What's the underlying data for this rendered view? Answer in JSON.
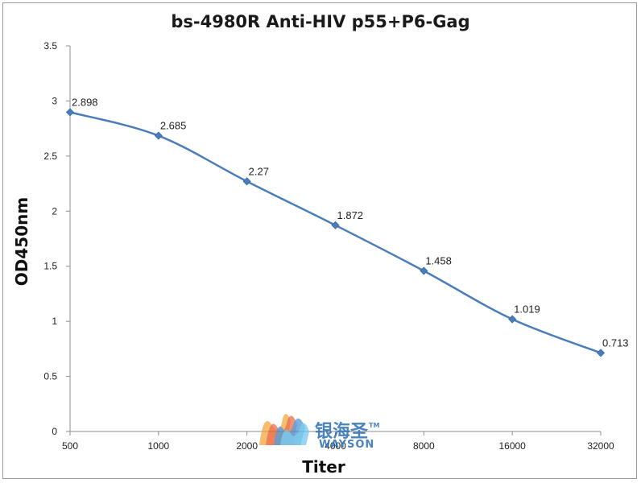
{
  "chart_data": {
    "type": "line",
    "title": "bs-4980R Anti-HIV p55+P6-Gag",
    "xlabel": "Titer",
    "ylabel": "OD450nm",
    "categories": [
      "500",
      "1000",
      "2000",
      "4000",
      "8000",
      "16000",
      "32000"
    ],
    "series": [
      {
        "values": [
          2.898,
          2.685,
          2.27,
          1.872,
          1.458,
          1.019,
          0.713
        ],
        "labels": [
          "2.898",
          "2.685",
          "2.27",
          "1.872",
          "1.458",
          "1.019",
          "0.713"
        ],
        "color": "#4a7ebb"
      }
    ],
    "ylim": [
      0,
      3.5
    ],
    "yticks": [
      {
        "value": 0,
        "label": "0"
      },
      {
        "value": 0.5,
        "label": "0.5"
      },
      {
        "value": 1,
        "label": "1"
      },
      {
        "value": 1.5,
        "label": "1.5"
      },
      {
        "value": 2,
        "label": "2"
      },
      {
        "value": 2.5,
        "label": "2.5"
      },
      {
        "value": 3,
        "label": "3"
      },
      {
        "value": 3.5,
        "label": "3.5"
      }
    ],
    "grid": false,
    "legend": "none"
  },
  "watermark": {
    "brand_cn": "银海圣",
    "trademark": "TM",
    "brand_en": "WAYSON",
    "color": "#2a6fb5"
  }
}
